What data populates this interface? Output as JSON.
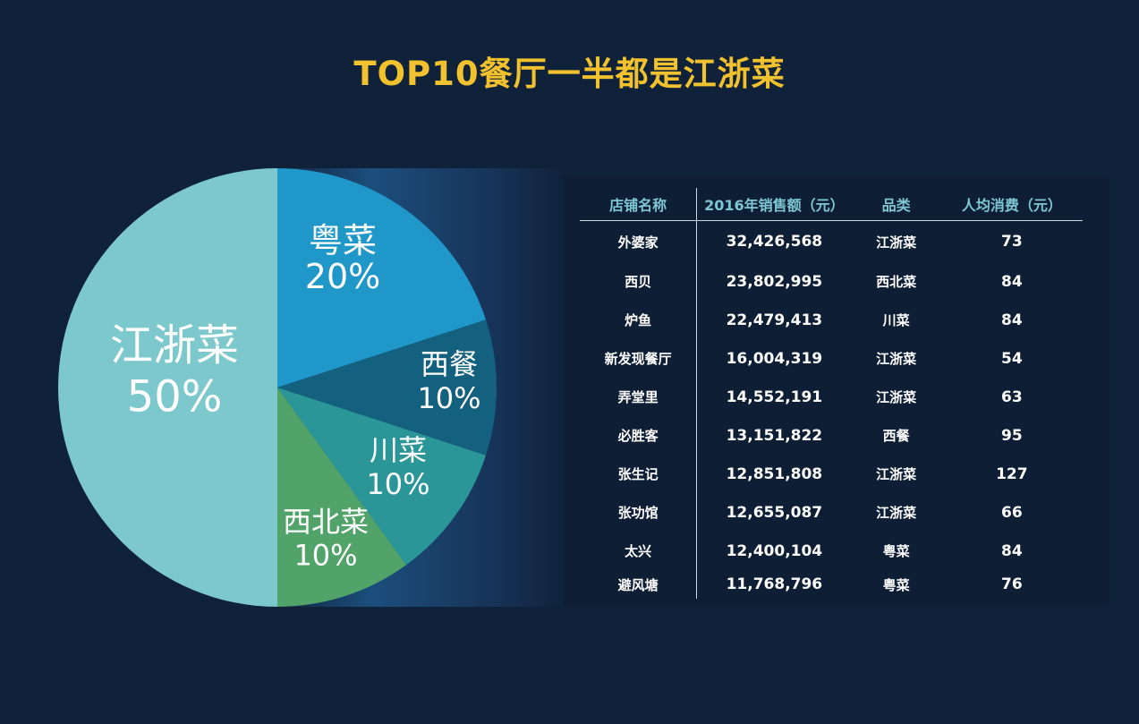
{
  "title": "TOP10餐厅一半都是江浙菜",
  "colors": {
    "title": "#f2c12e",
    "background": "#10223a",
    "header_text": "#7dc7d3"
  },
  "chart_data": {
    "type": "pie",
    "slices": [
      {
        "label": "粤菜",
        "value": 20,
        "pct_label": "20%",
        "color": "#1f97c8"
      },
      {
        "label": "西餐",
        "value": 10,
        "pct_label": "10%",
        "color": "#14607f"
      },
      {
        "label": "川菜",
        "value": 10,
        "pct_label": "10%",
        "color": "#2a9698"
      },
      {
        "label": "西北菜",
        "value": 10,
        "pct_label": "10%",
        "color": "#51a36a"
      },
      {
        "label": "江浙菜",
        "value": 50,
        "pct_label": "50%",
        "color": "#7dc8cc"
      }
    ],
    "start": "top, clockwise"
  },
  "table": {
    "headers": [
      "店铺名称",
      "2016年销售额（元）",
      "品类",
      "人均消费（元）"
    ],
    "rows": [
      [
        "外婆家",
        "32,426,568",
        "江浙菜",
        "73"
      ],
      [
        "西贝",
        "23,802,995",
        "西北菜",
        "84"
      ],
      [
        "炉鱼",
        "22,479,413",
        "川菜",
        "84"
      ],
      [
        "新发现餐厅",
        "16,004,319",
        "江浙菜",
        "54"
      ],
      [
        "弄堂里",
        "14,552,191",
        "江浙菜",
        "63"
      ],
      [
        "必胜客",
        "13,151,822",
        "西餐",
        "95"
      ],
      [
        "张生记",
        "12,851,808",
        "江浙菜",
        "127"
      ],
      [
        "张功馆",
        "12,655,087",
        "江浙菜",
        "66"
      ],
      [
        "太兴",
        "12,400,104",
        "粤菜",
        "84"
      ],
      [
        "避风塘",
        "11,768,796",
        "粤菜",
        "76"
      ]
    ]
  }
}
